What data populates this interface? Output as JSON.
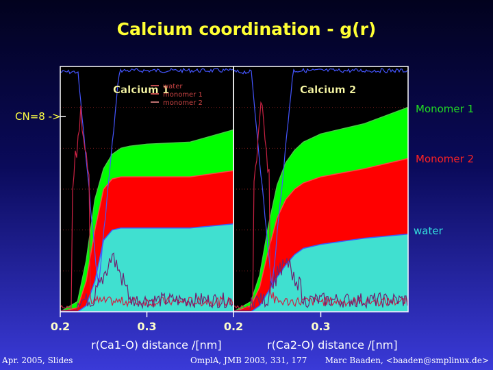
{
  "title": "Calcium coordination - g(r)",
  "cn_marker": "CN=8 ->",
  "legend_right": [
    {
      "label": "Monomer 1",
      "color": "#22dd22"
    },
    {
      "label": "Monomer 2",
      "color": "#ff2222"
    },
    {
      "label": "water",
      "color": "#33dddd"
    }
  ],
  "footer": {
    "left": "Apr. 2005, Slides",
    "center": "OmplA, JMB 2003, 331, 177",
    "right": "Marc Baaden, <baaden@smplinux.de>"
  },
  "colors": {
    "monomer1": "#00ff00",
    "monomer2": "#ff0000",
    "water": "#40e0d0",
    "water_gr": "#4444ff",
    "monomer1_gr": "#dd2222",
    "monomer2_gr": "#6a1a6a"
  },
  "chart_data": [
    {
      "type": "area",
      "title": "Calcium 1",
      "xlabel": "r(Ca1-O) distance /[nm]",
      "xlim": [
        0.2,
        0.4
      ],
      "xticks": [
        "0.2",
        "0.3"
      ],
      "inset_legend": [
        "water",
        "monomer 1",
        "monomer 2"
      ],
      "series": [
        {
          "name": "water",
          "x": [
            0.2,
            0.22,
            0.23,
            0.24,
            0.25,
            0.26,
            0.27,
            0.28,
            0.3,
            0.35,
            0.4
          ],
          "y": [
            0,
            0,
            0.3,
            1.5,
            3.5,
            4.0,
            4.1,
            4.1,
            4.1,
            4.1,
            4.3
          ]
        },
        {
          "name": "Monomer 2",
          "x": [
            0.2,
            0.22,
            0.23,
            0.24,
            0.25,
            0.26,
            0.27,
            0.28,
            0.3,
            0.35,
            0.4
          ],
          "y": [
            0,
            0.2,
            1.5,
            4.0,
            6.0,
            6.5,
            6.6,
            6.6,
            6.6,
            6.6,
            6.9
          ]
        },
        {
          "name": "Monomer 1",
          "x": [
            0.2,
            0.22,
            0.23,
            0.24,
            0.25,
            0.26,
            0.27,
            0.28,
            0.3,
            0.35,
            0.4
          ],
          "y": [
            0,
            0.5,
            2.5,
            5.5,
            7.0,
            7.7,
            8.0,
            8.1,
            8.2,
            8.3,
            8.9
          ]
        }
      ]
    },
    {
      "type": "area",
      "title": "Calcium 2",
      "xlabel": "r(Ca2-O) distance /[nm]",
      "xlim": [
        0.2,
        0.4
      ],
      "xticks": [
        "0.2",
        "0.3"
      ],
      "series": [
        {
          "name": "water",
          "x": [
            0.2,
            0.22,
            0.23,
            0.24,
            0.25,
            0.26,
            0.27,
            0.28,
            0.3,
            0.35,
            0.4
          ],
          "y": [
            0,
            0,
            0.3,
            1.0,
            1.7,
            2.3,
            2.8,
            3.1,
            3.3,
            3.6,
            3.8
          ]
        },
        {
          "name": "Monomer 2",
          "x": [
            0.2,
            0.22,
            0.23,
            0.24,
            0.25,
            0.26,
            0.27,
            0.28,
            0.3,
            0.35,
            0.4
          ],
          "y": [
            0,
            0.3,
            1.2,
            3.0,
            4.6,
            5.5,
            6.0,
            6.3,
            6.6,
            7.0,
            7.5
          ]
        },
        {
          "name": "Monomer 1",
          "x": [
            0.2,
            0.22,
            0.23,
            0.24,
            0.25,
            0.26,
            0.27,
            0.28,
            0.3,
            0.35,
            0.4
          ],
          "y": [
            0,
            0.5,
            1.8,
            4.2,
            6.2,
            7.3,
            7.9,
            8.3,
            8.7,
            9.2,
            10.0
          ]
        }
      ]
    }
  ]
}
